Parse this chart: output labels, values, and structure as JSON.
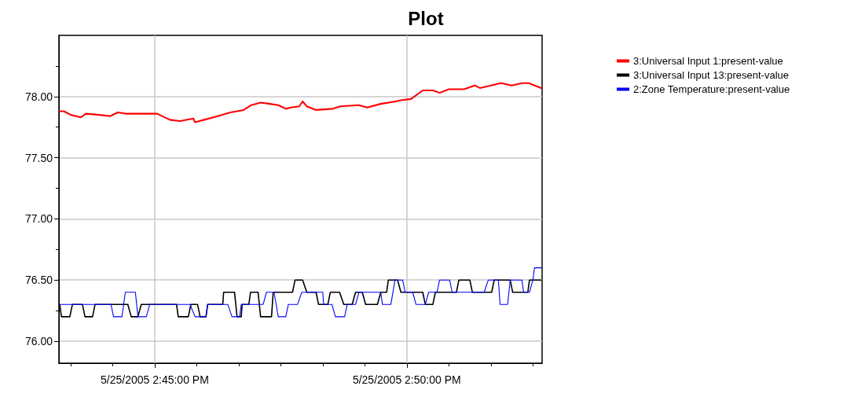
{
  "chart_data": {
    "type": "line",
    "title": "Plot",
    "legend": "top right",
    "grid": true,
    "xlim": [
      "2005-05-25T14:43:06",
      "2005-05-25T14:52:41"
    ],
    "ylim": [
      75.82,
      78.5
    ],
    "xticks": [
      {
        "value": "2005-05-25T14:43:20",
        "label": null
      },
      {
        "value": "2005-05-25T14:44:10",
        "label": null
      },
      {
        "value": "2005-05-25T14:45:00",
        "label": "5/25/2005 2:45:00 PM"
      },
      {
        "value": "2005-05-25T14:45:50",
        "label": null
      },
      {
        "value": "2005-05-25T14:46:40",
        "label": null
      },
      {
        "value": "2005-05-25T14:47:30",
        "label": null
      },
      {
        "value": "2005-05-25T14:48:20",
        "label": null
      },
      {
        "value": "2005-05-25T14:49:10",
        "label": null
      },
      {
        "value": "2005-05-25T14:50:00",
        "label": "5/25/2005 2:50:00 PM"
      },
      {
        "value": "2005-05-25T14:50:50",
        "label": null
      },
      {
        "value": "2005-05-25T14:51:40",
        "label": null
      },
      {
        "value": "2005-05-25T14:52:30",
        "label": null
      }
    ],
    "yticks": [
      {
        "value": 76,
        "label": "76.00"
      },
      {
        "value": 76.25,
        "label": null
      },
      {
        "value": 76.5,
        "label": "76.50"
      },
      {
        "value": 76.75,
        "label": null
      },
      {
        "value": 77,
        "label": "77.00"
      },
      {
        "value": 77.25,
        "label": null
      },
      {
        "value": 77.5,
        "label": "77.50"
      },
      {
        "value": 77.75,
        "label": null
      },
      {
        "value": 78,
        "label": "78.00"
      },
      {
        "value": 78.25,
        "label": null
      }
    ],
    "series": [
      {
        "name": "3:Universal Input 1:present-value",
        "color": "#ff0000",
        "x": [
          "2005-05-25T14:43:07",
          "2005-05-25T14:43:12",
          "2005-05-25T14:43:20",
          "2005-05-25T14:43:32",
          "2005-05-25T14:43:38",
          "2005-05-25T14:43:54",
          "2005-05-25T14:44:07",
          "2005-05-25T14:44:16",
          "2005-05-25T14:44:25",
          "2005-05-25T14:44:52",
          "2005-05-25T14:45:03",
          "2005-05-25T14:45:18",
          "2005-05-25T14:45:30",
          "2005-05-25T14:45:46",
          "2005-05-25T14:45:48",
          "2005-05-25T14:45:59",
          "2005-05-25T14:46:15",
          "2005-05-25T14:46:30",
          "2005-05-25T14:46:46",
          "2005-05-25T14:46:55",
          "2005-05-25T14:47:06",
          "2005-05-25T14:47:17",
          "2005-05-25T14:47:27",
          "2005-05-25T14:47:36",
          "2005-05-25T14:47:42",
          "2005-05-25T14:47:52",
          "2005-05-25T14:47:56",
          "2005-05-25T14:48:01",
          "2005-05-25T14:48:12",
          "2005-05-25T14:48:32",
          "2005-05-25T14:48:41",
          "2005-05-25T14:49:03",
          "2005-05-25T14:49:13",
          "2005-05-25T14:49:29",
          "2005-05-25T14:49:47",
          "2005-05-25T14:49:53",
          "2005-05-25T14:50:05",
          "2005-05-25T14:50:19",
          "2005-05-25T14:50:31",
          "2005-05-25T14:50:39",
          "2005-05-25T14:50:50",
          "2005-05-25T14:51:08",
          "2005-05-25T14:51:21",
          "2005-05-25T14:51:27",
          "2005-05-25T14:51:40",
          "2005-05-25T14:51:52",
          "2005-05-25T14:52:05",
          "2005-05-25T14:52:17",
          "2005-05-25T14:52:25",
          "2005-05-25T14:52:40"
        ],
        "values": [
          77.88,
          77.88,
          77.85,
          77.83,
          77.86,
          77.85,
          77.84,
          77.87,
          77.86,
          77.86,
          77.86,
          77.81,
          77.8,
          77.82,
          77.79,
          77.81,
          77.84,
          77.87,
          77.89,
          77.93,
          77.95,
          77.94,
          77.93,
          77.9,
          77.91,
          77.92,
          77.96,
          77.92,
          77.89,
          77.9,
          77.92,
          77.93,
          77.91,
          77.94,
          77.96,
          77.97,
          77.98,
          78.05,
          78.05,
          78.03,
          78.06,
          78.06,
          78.09,
          78.07,
          78.09,
          78.11,
          78.09,
          78.11,
          78.11,
          78.07
        ]
      },
      {
        "name": "3:Universal Input 13:present-value",
        "color": "#000000",
        "x": [
          "2005-05-25T14:43:07",
          "2005-05-25T14:43:09",
          "2005-05-25T14:43:19",
          "2005-05-25T14:43:22",
          "2005-05-25T14:43:34",
          "2005-05-25T14:43:37",
          "2005-05-25T14:43:46",
          "2005-05-25T14:43:49",
          "2005-05-25T14:44:28",
          "2005-05-25T14:44:32",
          "2005-05-25T14:44:40",
          "2005-05-25T14:44:44",
          "2005-05-25T14:45:26",
          "2005-05-25T14:45:28",
          "2005-05-25T14:45:40",
          "2005-05-25T14:45:43",
          "2005-05-25T14:45:51",
          "2005-05-25T14:45:54",
          "2005-05-25T14:46:01",
          "2005-05-25T14:46:03",
          "2005-05-25T14:46:21",
          "2005-05-25T14:46:22",
          "2005-05-25T14:46:35",
          "2005-05-25T14:46:38",
          "2005-05-25T14:46:43",
          "2005-05-25T14:46:44",
          "2005-05-25T14:46:52",
          "2005-05-25T14:46:54",
          "2005-05-25T14:47:03",
          "2005-05-25T14:47:06",
          "2005-05-25T14:47:19",
          "2005-05-25T14:47:21",
          "2005-05-25T14:47:44",
          "2005-05-25T14:47:47",
          "2005-05-25T14:47:56",
          "2005-05-25T14:48:01",
          "2005-05-25T14:48:12",
          "2005-05-25T14:48:15",
          "2005-05-25T14:48:26",
          "2005-05-25T14:48:29",
          "2005-05-25T14:48:40",
          "2005-05-25T14:48:45",
          "2005-05-25T14:48:55",
          "2005-05-25T14:48:59",
          "2005-05-25T14:49:07",
          "2005-05-25T14:49:11",
          "2005-05-25T14:49:25",
          "2005-05-25T14:49:29",
          "2005-05-25T14:49:36",
          "2005-05-25T14:49:38",
          "2005-05-25T14:49:49",
          "2005-05-25T14:49:53",
          "2005-05-25T14:50:19",
          "2005-05-25T14:50:22",
          "2005-05-25T14:50:31",
          "2005-05-25T14:50:34",
          "2005-05-25T14:50:59",
          "2005-05-25T14:51:02",
          "2005-05-25T14:51:15",
          "2005-05-25T14:51:18",
          "2005-05-25T14:51:41",
          "2005-05-25T14:51:44",
          "2005-05-25T14:52:03",
          "2005-05-25T14:52:06",
          "2005-05-25T14:52:24",
          "2005-05-25T14:52:26",
          "2005-05-25T14:52:40"
        ],
        "values": [
          76.3,
          76.2,
          76.2,
          76.3,
          76.3,
          76.2,
          76.2,
          76.3,
          76.3,
          76.2,
          76.2,
          76.3,
          76.3,
          76.2,
          76.2,
          76.3,
          76.3,
          76.2,
          76.2,
          76.3,
          76.3,
          76.4,
          76.4,
          76.2,
          76.2,
          76.3,
          76.3,
          76.4,
          76.4,
          76.2,
          76.2,
          76.4,
          76.4,
          76.5,
          76.5,
          76.4,
          76.4,
          76.3,
          76.3,
          76.4,
          76.4,
          76.3,
          76.3,
          76.4,
          76.4,
          76.3,
          76.3,
          76.4,
          76.4,
          76.5,
          76.5,
          76.4,
          76.4,
          76.3,
          76.3,
          76.4,
          76.4,
          76.5,
          76.5,
          76.4,
          76.4,
          76.5,
          76.5,
          76.4,
          76.4,
          76.5,
          76.5
        ]
      },
      {
        "name": "2:Zone Temperature:present-value",
        "color": "#0000ff",
        "x": [
          "2005-05-25T14:43:07",
          "2005-05-25T14:44:08",
          "2005-05-25T14:44:11",
          "2005-05-25T14:44:21",
          "2005-05-25T14:44:25",
          "2005-05-25T14:44:37",
          "2005-05-25T14:44:40",
          "2005-05-25T14:44:50",
          "2005-05-25T14:44:54",
          "2005-05-25T14:45:42",
          "2005-05-25T14:45:48",
          "2005-05-25T14:46:01",
          "2005-05-25T14:46:03",
          "2005-05-25T14:46:27",
          "2005-05-25T14:46:32",
          "2005-05-25T14:46:41",
          "2005-05-25T14:46:43",
          "2005-05-25T14:47:09",
          "2005-05-25T14:47:13",
          "2005-05-25T14:47:22",
          "2005-05-25T14:47:27",
          "2005-05-25T14:47:36",
          "2005-05-25T14:47:39",
          "2005-05-25T14:47:50",
          "2005-05-25T14:47:55",
          "2005-05-25T14:48:20",
          "2005-05-25T14:48:21",
          "2005-05-25T14:48:31",
          "2005-05-25T14:48:35",
          "2005-05-25T14:48:46",
          "2005-05-25T14:48:49",
          "2005-05-25T14:48:59",
          "2005-05-25T14:49:03",
          "2005-05-25T14:49:29",
          "2005-05-25T14:49:31",
          "2005-05-25T14:49:41",
          "2005-05-25T14:49:46",
          "2005-05-25T14:49:55",
          "2005-05-25T14:49:58",
          "2005-05-25T14:50:07",
          "2005-05-25T14:50:11",
          "2005-05-25T14:50:22",
          "2005-05-25T14:50:26",
          "2005-05-25T14:50:36",
          "2005-05-25T14:50:39",
          "2005-05-25T14:50:51",
          "2005-05-25T14:50:54",
          "2005-05-25T14:51:32",
          "2005-05-25T14:51:37",
          "2005-05-25T14:51:49",
          "2005-05-25T14:51:51",
          "2005-05-25T14:52:00",
          "2005-05-25T14:52:03",
          "2005-05-25T14:52:17",
          "2005-05-25T14:52:19",
          "2005-05-25T14:52:26",
          "2005-05-25T14:52:30",
          "2005-05-25T14:52:32",
          "2005-05-25T14:52:40"
        ],
        "values": [
          76.3,
          76.3,
          76.2,
          76.2,
          76.4,
          76.4,
          76.2,
          76.2,
          76.3,
          76.3,
          76.2,
          76.2,
          76.3,
          76.3,
          76.2,
          76.2,
          76.3,
          76.3,
          76.4,
          76.4,
          76.2,
          76.2,
          76.3,
          76.3,
          76.4,
          76.4,
          76.3,
          76.3,
          76.2,
          76.2,
          76.3,
          76.3,
          76.4,
          76.4,
          76.3,
          76.3,
          76.5,
          76.5,
          76.4,
          76.4,
          76.3,
          76.3,
          76.4,
          76.4,
          76.5,
          76.5,
          76.4,
          76.4,
          76.5,
          76.5,
          76.3,
          76.3,
          76.5,
          76.5,
          76.4,
          76.4,
          76.5,
          76.6,
          76.6
        ]
      }
    ]
  }
}
